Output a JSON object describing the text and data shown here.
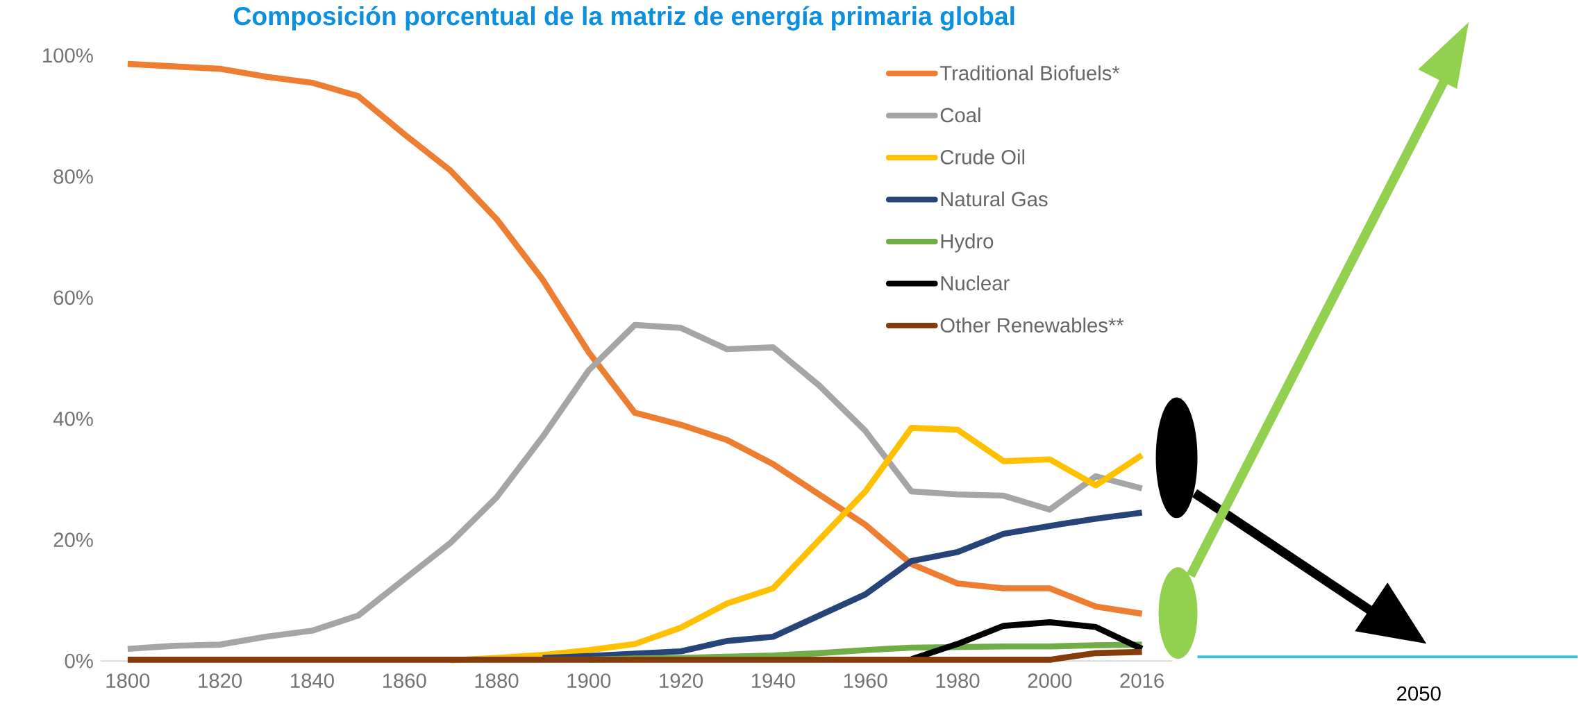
{
  "chart_data": {
    "type": "line",
    "title": "Composición porcentual de la matriz de energía primaria global",
    "categories": [
      "1800",
      null,
      "1820",
      null,
      "1840",
      null,
      "1860",
      null,
      "1880",
      null,
      "1900",
      null,
      "1920",
      null,
      "1940",
      null,
      "1960",
      null,
      "1980",
      null,
      "2000",
      null,
      "2016"
    ],
    "series": [
      {
        "name": "Traditional Biofuels*",
        "color": "#ed7d31",
        "values": [
          98.6,
          98.2,
          97.8,
          96.5,
          95.5,
          93.3,
          87,
          81,
          73,
          63,
          51,
          41,
          39,
          36.5,
          32.5,
          27.5,
          22.5,
          16,
          12.8,
          12,
          12,
          9,
          7.8
        ]
      },
      {
        "name": "Coal",
        "color": "#a5a5a5",
        "values": [
          2,
          2.5,
          2.7,
          4,
          5,
          7.5,
          13.5,
          19.5,
          27,
          37,
          48,
          55.5,
          55,
          51.5,
          51.8,
          45.5,
          38,
          28,
          27.5,
          27.3,
          25,
          30.5,
          28.5
        ]
      },
      {
        "name": "Crude Oil",
        "color": "#ffc000",
        "values": [
          null,
          null,
          null,
          null,
          null,
          null,
          null,
          0.1,
          0.5,
          1,
          1.8,
          2.8,
          5.5,
          9.5,
          12,
          20,
          28,
          38.5,
          38.2,
          33,
          33.3,
          29,
          34
        ]
      },
      {
        "name": "Natural Gas",
        "color": "#264478",
        "values": [
          null,
          null,
          null,
          null,
          null,
          null,
          null,
          null,
          null,
          0.5,
          0.8,
          1.2,
          1.6,
          3.3,
          4,
          7.5,
          11,
          16.5,
          18,
          21,
          22.3,
          23.5,
          24.5
        ]
      },
      {
        "name": "Hydro",
        "color": "#70ad47",
        "values": [
          null,
          null,
          null,
          null,
          null,
          null,
          null,
          null,
          null,
          null,
          0.2,
          0.4,
          0.5,
          0.7,
          0.9,
          1.3,
          1.8,
          2.2,
          2.3,
          2.4,
          2.4,
          2.6,
          2.7
        ]
      },
      {
        "name": "Nuclear",
        "color": "#000000",
        "values": [
          null,
          null,
          null,
          null,
          null,
          null,
          null,
          null,
          null,
          null,
          null,
          null,
          null,
          null,
          null,
          null,
          null,
          0.3,
          2.8,
          5.8,
          6.4,
          5.6,
          2
        ]
      },
      {
        "name": "Other Renewables**",
        "color": "#843c0c",
        "values": [
          0.2,
          0.2,
          0.2,
          0.2,
          0.2,
          0.2,
          0.2,
          0.2,
          0.2,
          0.2,
          0.2,
          0.2,
          0.2,
          0.2,
          0.2,
          0.2,
          0.2,
          0.2,
          0.2,
          0.2,
          0.2,
          1.3,
          1.5
        ]
      }
    ],
    "ylim": [
      0,
      100
    ],
    "yticks": [
      {
        "value": 0,
        "label": "0%"
      },
      {
        "value": 20,
        "label": "20%"
      },
      {
        "value": 40,
        "label": "40%"
      },
      {
        "value": 60,
        "label": "60%"
      },
      {
        "value": 80,
        "label": "80%"
      },
      {
        "value": 100,
        "label": "100%"
      }
    ],
    "legend": "top right",
    "annotations": [
      "2050"
    ]
  }
}
